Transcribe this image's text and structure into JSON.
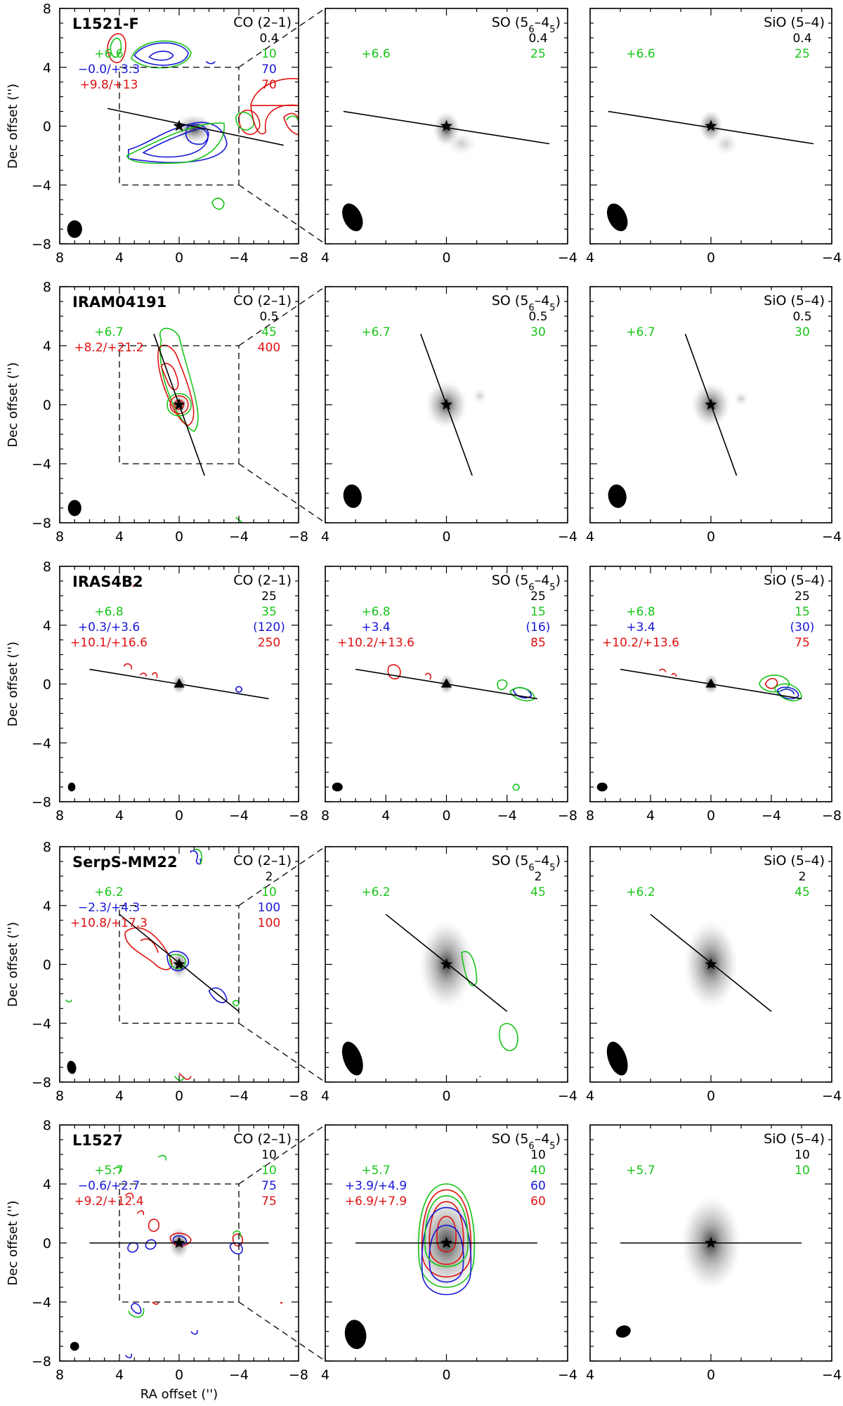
{
  "figure": {
    "xlabel": "RA offset ('')",
    "ylabel": "Dec offset ('')",
    "colors": {
      "green": "#18c418",
      "blue": "#1717d6",
      "red": "#e01010",
      "black": "#000000"
    }
  },
  "chart_data": [
    {
      "type": "contour",
      "source": "L1521-F",
      "panels": [
        {
          "line": "CO (2–1)",
          "xlim": [
            8,
            -8
          ],
          "ylim": [
            -8,
            8
          ],
          "xticks": [
            "8",
            "4",
            "0",
            "−4",
            "−8"
          ],
          "yticks": [
            "8",
            "4",
            "0",
            "−4",
            "−8"
          ],
          "marker": "star",
          "outflow_pa_line": [
            [
              4.8,
              1.2
            ],
            [
              -7,
              -1.3
            ]
          ],
          "zoom_box": [
            [
              4,
              4
            ],
            [
              -4,
              -4
            ]
          ],
          "velocities": [
            {
              "text": "+6.6",
              "color": "green"
            },
            {
              "text": "−0.0/+3.3",
              "color": "blue"
            },
            {
              "text": "+9.8/+13",
              "color": "red"
            }
          ],
          "levels": [
            {
              "text": "0.4",
              "color": "black"
            },
            {
              "text": "10",
              "color": "green"
            },
            {
              "text": "70",
              "color": "blue"
            },
            {
              "text": "70",
              "color": "red"
            }
          ]
        },
        {
          "line": "SO (5₆–4₅)",
          "xlim": [
            4,
            -4
          ],
          "ylim": [
            -4,
            4
          ],
          "xticks": [
            "4",
            "0",
            "−4"
          ],
          "yticks": [],
          "marker": "star",
          "outflow_pa_line": [
            [
              3.4,
              0.5
            ],
            [
              -3.4,
              -0.6
            ]
          ],
          "velocities": [
            {
              "text": "+6.6",
              "color": "green"
            }
          ],
          "levels": [
            {
              "text": "0.4",
              "color": "black"
            },
            {
              "text": "25",
              "color": "green"
            }
          ]
        },
        {
          "line": "SiO (5–4)",
          "xlim": [
            4,
            -4
          ],
          "ylim": [
            -4,
            4
          ],
          "xticks": [
            "4",
            "0",
            "−4"
          ],
          "yticks": [],
          "marker": "star",
          "outflow_pa_line": [
            [
              3.4,
              0.5
            ],
            [
              -3.4,
              -0.6
            ]
          ],
          "velocities": [
            {
              "text": "+6.6",
              "color": "green"
            }
          ],
          "levels": [
            {
              "text": "0.4",
              "color": "black"
            },
            {
              "text": "25",
              "color": "green"
            }
          ]
        }
      ]
    },
    {
      "type": "contour",
      "source": "IRAM04191",
      "panels": [
        {
          "line": "CO (2–1)",
          "xlim": [
            8,
            -8
          ],
          "ylim": [
            -8,
            8
          ],
          "xticks": [
            "8",
            "4",
            "0",
            "−4",
            "−8"
          ],
          "yticks": [
            "8",
            "4",
            "0",
            "−4",
            "−8"
          ],
          "marker": "star",
          "outflow_pa_line": [
            [
              1.7,
              4.8
            ],
            [
              -1.7,
              -4.8
            ]
          ],
          "zoom_box": [
            [
              4,
              4
            ],
            [
              -4,
              -4
            ]
          ],
          "velocities": [
            {
              "text": "+6.7",
              "color": "green"
            },
            {
              "text": "+8.2/+21.2",
              "color": "red"
            }
          ],
          "levels": [
            {
              "text": "0.5",
              "color": "black"
            },
            {
              "text": "45",
              "color": "green"
            },
            {
              "text": "400",
              "color": "red"
            }
          ]
        },
        {
          "line": "SO (5₆–4₅)",
          "xlim": [
            4,
            -4
          ],
          "ylim": [
            -4,
            4
          ],
          "xticks": [
            "4",
            "0",
            "−4"
          ],
          "yticks": [],
          "marker": "star",
          "outflow_pa_line": [
            [
              0.85,
              2.4
            ],
            [
              -0.85,
              -2.4
            ]
          ],
          "velocities": [
            {
              "text": "+6.7",
              "color": "green"
            }
          ],
          "levels": [
            {
              "text": "0.5",
              "color": "black"
            },
            {
              "text": "30",
              "color": "green"
            }
          ]
        },
        {
          "line": "SiO (5–4)",
          "xlim": [
            4,
            -4
          ],
          "ylim": [
            -4,
            4
          ],
          "xticks": [
            "4",
            "0",
            "−4"
          ],
          "yticks": [],
          "marker": "star",
          "outflow_pa_line": [
            [
              0.85,
              2.4
            ],
            [
              -0.85,
              -2.4
            ]
          ],
          "velocities": [
            {
              "text": "+6.7",
              "color": "green"
            }
          ],
          "levels": [
            {
              "text": "0.5",
              "color": "black"
            },
            {
              "text": "30",
              "color": "green"
            }
          ]
        }
      ]
    },
    {
      "type": "contour",
      "source": "IRAS4B2",
      "panels": [
        {
          "line": "CO (2–1)",
          "xlim": [
            8,
            -8
          ],
          "ylim": [
            -8,
            8
          ],
          "xticks": [
            "8",
            "4",
            "0",
            "−4",
            "−8"
          ],
          "yticks": [
            "8",
            "4",
            "0",
            "−4",
            "−8"
          ],
          "marker": "triangle",
          "outflow_pa_line": [
            [
              6,
              1
            ],
            [
              -6,
              -1
            ]
          ],
          "velocities": [
            {
              "text": "+6.8",
              "color": "green"
            },
            {
              "text": "+0.3/+3.6",
              "color": "blue"
            },
            {
              "text": "+10.1/+16.6",
              "color": "red"
            }
          ],
          "levels": [
            {
              "text": "25",
              "color": "black"
            },
            {
              "text": "35",
              "color": "green"
            },
            {
              "text": "(120)",
              "color": "blue"
            },
            {
              "text": "250",
              "color": "red"
            }
          ]
        },
        {
          "line": "SO (5₆–4₅)",
          "xlim": [
            8,
            -8
          ],
          "ylim": [
            -8,
            8
          ],
          "xticks": [
            "8",
            "4",
            "0",
            "−4",
            "−8"
          ],
          "yticks": [],
          "marker": "triangle",
          "outflow_pa_line": [
            [
              6,
              1
            ],
            [
              -6,
              -1
            ]
          ],
          "velocities": [
            {
              "text": "+6.8",
              "color": "green"
            },
            {
              "text": "+3.4",
              "color": "blue"
            },
            {
              "text": "+10.2/+13.6",
              "color": "red"
            }
          ],
          "levels": [
            {
              "text": "25",
              "color": "black"
            },
            {
              "text": "15",
              "color": "green"
            },
            {
              "text": "(16)",
              "color": "blue"
            },
            {
              "text": "85",
              "color": "red"
            }
          ]
        },
        {
          "line": "SiO (5–4)",
          "xlim": [
            8,
            -8
          ],
          "ylim": [
            -8,
            8
          ],
          "xticks": [
            "8",
            "4",
            "0",
            "−4",
            "−8"
          ],
          "yticks": [],
          "marker": "triangle",
          "outflow_pa_line": [
            [
              6,
              1
            ],
            [
              -6,
              -1
            ]
          ],
          "velocities": [
            {
              "text": "+6.8",
              "color": "green"
            },
            {
              "text": "+3.4",
              "color": "blue"
            },
            {
              "text": "+10.2/+13.6",
              "color": "red"
            }
          ],
          "levels": [
            {
              "text": "25",
              "color": "black"
            },
            {
              "text": "15",
              "color": "green"
            },
            {
              "text": "(30)",
              "color": "blue"
            },
            {
              "text": "75",
              "color": "red"
            }
          ]
        }
      ]
    },
    {
      "type": "contour",
      "source": "SerpS-MM22",
      "panels": [
        {
          "line": "CO (2–1)",
          "xlim": [
            8,
            -8
          ],
          "ylim": [
            -8,
            8
          ],
          "xticks": [
            "8",
            "4",
            "0",
            "−4",
            "−8"
          ],
          "yticks": [
            "8",
            "4",
            "0",
            "−4",
            "−8"
          ],
          "marker": "star",
          "outflow_pa_line": [
            [
              4,
              3.4
            ],
            [
              -4,
              -3.2
            ]
          ],
          "zoom_box": [
            [
              4,
              4
            ],
            [
              -4,
              -4
            ]
          ],
          "velocities": [
            {
              "text": "+6.2",
              "color": "green"
            },
            {
              "text": "−2.3/+4.3",
              "color": "blue"
            },
            {
              "text": "+10.8/+17.3",
              "color": "red"
            }
          ],
          "levels": [
            {
              "text": "2",
              "color": "black"
            },
            {
              "text": "10",
              "color": "green"
            },
            {
              "text": "100",
              "color": "blue"
            },
            {
              "text": "100",
              "color": "red"
            }
          ]
        },
        {
          "line": "SO (5₆–4₅)",
          "xlim": [
            4,
            -4
          ],
          "ylim": [
            -4,
            4
          ],
          "xticks": [
            "4",
            "0",
            "−4"
          ],
          "yticks": [],
          "marker": "star",
          "outflow_pa_line": [
            [
              2,
              1.7
            ],
            [
              -2,
              -1.6
            ]
          ],
          "velocities": [
            {
              "text": "+6.2",
              "color": "green"
            }
          ],
          "levels": [
            {
              "text": "2",
              "color": "black"
            },
            {
              "text": "45",
              "color": "green"
            }
          ]
        },
        {
          "line": "SiO (5–4)",
          "xlim": [
            4,
            -4
          ],
          "ylim": [
            -4,
            4
          ],
          "xticks": [
            "4",
            "0",
            "−4"
          ],
          "yticks": [],
          "marker": "star",
          "outflow_pa_line": [
            [
              2,
              1.7
            ],
            [
              -2,
              -1.6
            ]
          ],
          "velocities": [
            {
              "text": "+6.2",
              "color": "green"
            }
          ],
          "levels": [
            {
              "text": "2",
              "color": "black"
            },
            {
              "text": "45",
              "color": "green"
            }
          ]
        }
      ]
    },
    {
      "type": "contour",
      "source": "L1527",
      "panels": [
        {
          "line": "CO (2–1)",
          "xlim": [
            8,
            -8
          ],
          "ylim": [
            -8,
            8
          ],
          "xticks": [
            "8",
            "4",
            "0",
            "−4",
            "−8"
          ],
          "yticks": [
            "8",
            "4",
            "0",
            "−4",
            "−8"
          ],
          "marker": "star",
          "outflow_pa_line": [
            [
              6,
              0
            ],
            [
              -6,
              0
            ]
          ],
          "zoom_box": [
            [
              4,
              4
            ],
            [
              -4,
              -4
            ]
          ],
          "velocities": [
            {
              "text": "+5.7",
              "color": "green"
            },
            {
              "text": "−0.6/+2.7",
              "color": "blue"
            },
            {
              "text": "+9.2/+12.4",
              "color": "red"
            }
          ],
          "levels": [
            {
              "text": "10",
              "color": "black"
            },
            {
              "text": "10",
              "color": "green"
            },
            {
              "text": "75",
              "color": "blue"
            },
            {
              "text": "75",
              "color": "red"
            }
          ]
        },
        {
          "line": "SO (5₆–4₅)",
          "xlim": [
            4,
            -4
          ],
          "ylim": [
            -4,
            4
          ],
          "xticks": [
            "4",
            "0",
            "−4"
          ],
          "yticks": [],
          "marker": "star",
          "outflow_pa_line": [
            [
              3,
              0
            ],
            [
              -3,
              0
            ]
          ],
          "velocities": [
            {
              "text": "+5.7",
              "color": "green"
            },
            {
              "text": "+3.9/+4.9",
              "color": "blue"
            },
            {
              "text": "+6.9/+7.9",
              "color": "red"
            }
          ],
          "levels": [
            {
              "text": "10",
              "color": "black"
            },
            {
              "text": "40",
              "color": "green"
            },
            {
              "text": "60",
              "color": "blue"
            },
            {
              "text": "60",
              "color": "red"
            }
          ]
        },
        {
          "line": "SiO (5–4)",
          "xlim": [
            4,
            -4
          ],
          "ylim": [
            -4,
            4
          ],
          "xticks": [
            "4",
            "0",
            "−4"
          ],
          "yticks": [],
          "marker": "star",
          "outflow_pa_line": [
            [
              3,
              0
            ],
            [
              -3,
              0
            ]
          ],
          "velocities": [
            {
              "text": "+5.7",
              "color": "green"
            }
          ],
          "levels": [
            {
              "text": "10",
              "color": "black"
            },
            {
              "text": "10",
              "color": "green"
            }
          ]
        }
      ]
    }
  ]
}
